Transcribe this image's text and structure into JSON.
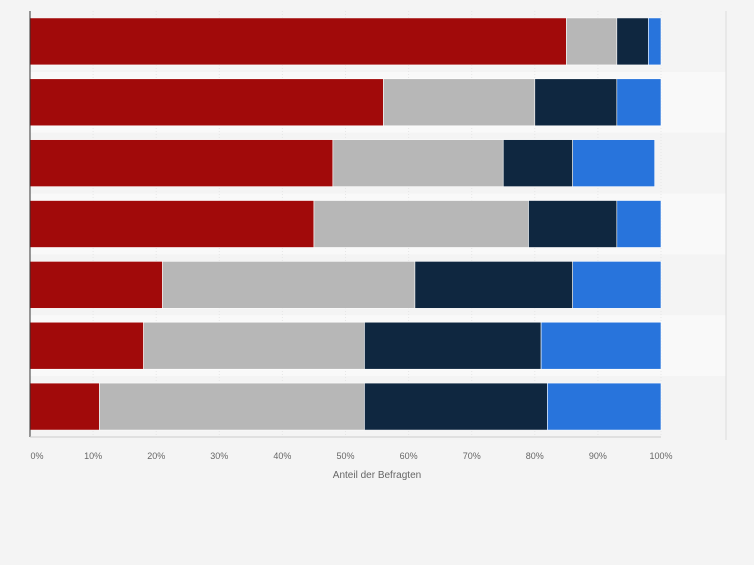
{
  "chart_data": {
    "type": "bar",
    "orientation": "horizontal",
    "stacked": true,
    "xlabel": "Anteil der Befragten",
    "xlim": [
      0,
      100
    ],
    "x_ticks": [
      "0%",
      "10%",
      "20%",
      "30%",
      "40%",
      "50%",
      "60%",
      "70%",
      "80%",
      "90%",
      "100%"
    ],
    "grid": true,
    "categories": [
      "",
      "",
      "",
      "",
      "",
      "",
      ""
    ],
    "series": [
      {
        "color": "#a10a0a",
        "values": [
          85,
          56,
          48,
          45,
          21,
          18,
          11
        ]
      },
      {
        "color": "#b7b7b7",
        "values": [
          8,
          24,
          27,
          34,
          40,
          35,
          42
        ]
      },
      {
        "color": "#0f2740",
        "values": [
          5,
          13,
          11,
          14,
          25,
          28,
          29
        ]
      },
      {
        "color": "#2874dc",
        "values": [
          2,
          7,
          13,
          7,
          14,
          19,
          18
        ]
      }
    ]
  }
}
